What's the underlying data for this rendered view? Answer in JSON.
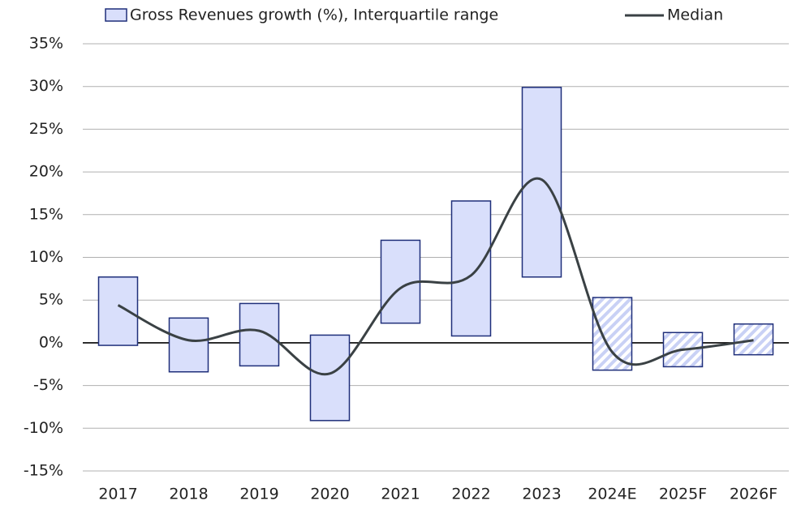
{
  "chart_data": {
    "type": "range-bar-line",
    "categories": [
      "2017",
      "2018",
      "2019",
      "2020",
      "2021",
      "2022",
      "2023",
      "2024E",
      "2025F",
      "2026F"
    ],
    "series": [
      {
        "name": "Gross Revenues growth (%), Interquartile range",
        "type": "range",
        "color": "#d9dffb",
        "edge_color": "#1f2f7a",
        "low": [
          -0.3,
          -3.4,
          -2.7,
          -9.1,
          2.3,
          0.8,
          7.7,
          -3.2,
          -2.8,
          -1.4
        ],
        "high": [
          7.7,
          2.9,
          4.6,
          0.9,
          12.0,
          16.6,
          29.9,
          5.3,
          1.2,
          2.2
        ],
        "hatched": [
          false,
          false,
          false,
          false,
          false,
          false,
          false,
          true,
          true,
          true
        ]
      },
      {
        "name": "Median",
        "type": "line",
        "color": "#3a4144",
        "values": [
          4.4,
          0.3,
          1.4,
          -3.6,
          6.4,
          7.9,
          19.1,
          -1.1,
          -0.8,
          0.3
        ]
      }
    ],
    "ylim": [
      -15,
      35
    ],
    "yticks": [
      {
        "value": -15,
        "label": "-15%"
      },
      {
        "value": -10,
        "label": "-10%"
      },
      {
        "value": -5,
        "label": "-5%"
      },
      {
        "value": 0,
        "label": "0%"
      },
      {
        "value": 5,
        "label": "5%"
      },
      {
        "value": 10,
        "label": "10%"
      },
      {
        "value": 15,
        "label": "15%"
      },
      {
        "value": 20,
        "label": "20%"
      },
      {
        "value": 25,
        "label": "25%"
      },
      {
        "value": 30,
        "label": "30%"
      },
      {
        "value": 35,
        "label": "35%"
      }
    ],
    "grid": true
  }
}
